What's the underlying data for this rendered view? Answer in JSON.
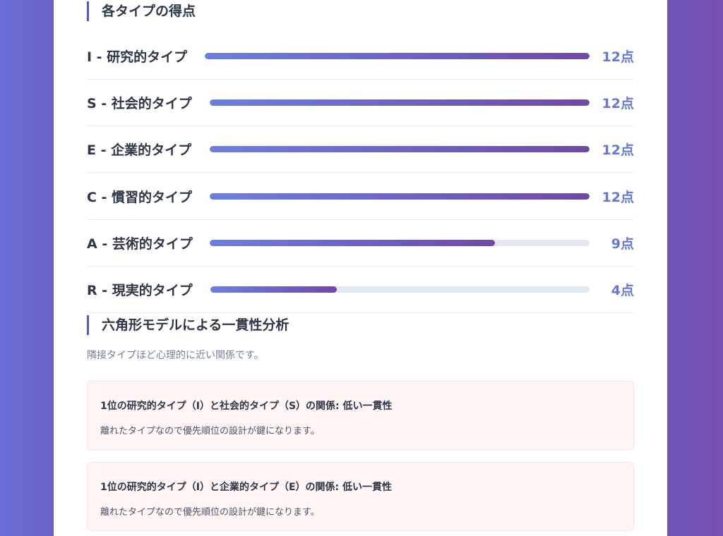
{
  "scores_section": {
    "heading": "各タイプの得点",
    "rows": [
      {
        "label": "I - 研究的タイプ",
        "value": "12点",
        "score": 12,
        "max": 12
      },
      {
        "label": "S - 社会的タイプ",
        "value": "12点",
        "score": 12,
        "max": 12
      },
      {
        "label": "E - 企業的タイプ",
        "value": "12点",
        "score": 12,
        "max": 12
      },
      {
        "label": "C - 慣習的タイプ",
        "value": "12点",
        "score": 12,
        "max": 12
      },
      {
        "label": "A - 芸術的タイプ",
        "value": "9点",
        "score": 9,
        "max": 12
      },
      {
        "label": "R - 現実的タイプ",
        "value": "4点",
        "score": 4,
        "max": 12
      }
    ]
  },
  "consistency_section": {
    "heading": "六角形モデルによる一貫性分析",
    "description": "隣接タイプほど心理的に近い関係です。",
    "cards": [
      {
        "title": "1位の研究的タイプ（I）と社会的タイプ（S）の関係: 低い一貫性",
        "text": "離れたタイプなので優先順位の設計が鍵になります。"
      },
      {
        "title": "1位の研究的タイプ（I）と企業的タイプ（E）の関係: 低い一貫性",
        "text": "離れたタイプなので優先順位の設計が鍵になります。"
      }
    ]
  },
  "colors": {
    "accent": "#6478dc",
    "bar_start": "#6b7fe0",
    "bar_end": "#7048a8",
    "track": "#e2e8f0",
    "card_bg": "#fff5f5"
  }
}
